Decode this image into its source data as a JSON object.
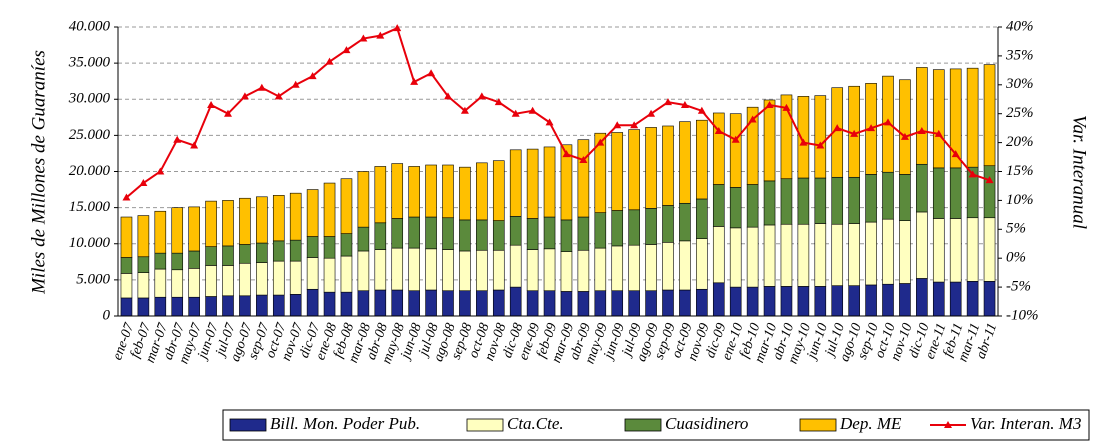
{
  "chart_data": {
    "type": "stacked_bar_line",
    "y_label": "Miles de Millones de Guaraníes",
    "y2_label": "Var. Interanual",
    "categories": [
      "ene-07",
      "feb-07",
      "mar-07",
      "abr-07",
      "may-07",
      "jun-07",
      "jul-07",
      "ago-07",
      "sep-07",
      "oct-07",
      "nov-07",
      "dic-07",
      "ene-08",
      "feb-08",
      "mar-08",
      "abr-08",
      "may-08",
      "jun-08",
      "jul-08",
      "ago-08",
      "sep-08",
      "oct-08",
      "nov-08",
      "dic-08",
      "ene-09",
      "feb-09",
      "mar-09",
      "abr-09",
      "may-09",
      "jun-09",
      "jul-09",
      "ago-09",
      "sep-09",
      "oct-09",
      "nov-09",
      "dic-09",
      "ene-10",
      "feb-10",
      "mar-10",
      "abr-10",
      "may-10",
      "jun-10",
      "jul-10",
      "ago-10",
      "sep-10",
      "oct-10",
      "nov-10",
      "dic-10",
      "ene-11",
      "feb-11",
      "mar-11",
      "abr-11"
    ],
    "series": [
      {
        "name": "Bill. Mon. Poder Pub.",
        "color": "#1f2a8c",
        "values": [
          2500,
          2500,
          2600,
          2600,
          2600,
          2700,
          2800,
          2800,
          2900,
          2900,
          3000,
          3700,
          3300,
          3300,
          3500,
          3600,
          3600,
          3500,
          3600,
          3500,
          3500,
          3500,
          3600,
          4000,
          3500,
          3500,
          3400,
          3400,
          3500,
          3500,
          3500,
          3500,
          3600,
          3600,
          3700,
          4600,
          4000,
          4000,
          4100,
          4100,
          4100,
          4100,
          4200,
          4200,
          4300,
          4400,
          4500,
          5200,
          4700,
          4700,
          4800,
          4800
        ]
      },
      {
        "name": "Cta.Cte.",
        "color": "#ffffc0",
        "values": [
          3400,
          3500,
          3900,
          3800,
          4000,
          4300,
          4200,
          4500,
          4500,
          4700,
          4600,
          4400,
          4700,
          5000,
          5500,
          5600,
          5800,
          5900,
          5700,
          5700,
          5500,
          5600,
          5500,
          5800,
          5700,
          5800,
          5500,
          5700,
          5900,
          6200,
          6300,
          6400,
          6600,
          6800,
          7000,
          7800,
          8200,
          8300,
          8500,
          8600,
          8600,
          8700,
          8500,
          8600,
          8700,
          9000,
          8700,
          9200,
          8800,
          8800,
          8800,
          8800
        ]
      },
      {
        "name": "Cuasidinero",
        "color": "#5b8a3c",
        "values": [
          2200,
          2200,
          2200,
          2300,
          2400,
          2600,
          2700,
          2600,
          2700,
          2800,
          2900,
          2900,
          3000,
          3100,
          3300,
          3700,
          4100,
          4300,
          4400,
          4400,
          4300,
          4200,
          4100,
          4000,
          4300,
          4400,
          4400,
          4600,
          4900,
          4900,
          4900,
          5000,
          5100,
          5200,
          5500,
          5800,
          5600,
          5900,
          6100,
          6300,
          6400,
          6300,
          6500,
          6400,
          6600,
          6500,
          6400,
          6600,
          7000,
          7000,
          7000,
          7200
        ]
      },
      {
        "name": "Dep. ME",
        "color": "#ffc000",
        "values": [
          5600,
          5700,
          5800,
          6300,
          6100,
          6300,
          6300,
          6400,
          6400,
          6300,
          6500,
          6500,
          7400,
          7600,
          7700,
          7800,
          7600,
          7000,
          7200,
          7300,
          7300,
          7900,
          8300,
          9200,
          9600,
          9700,
          10400,
          10700,
          11000,
          10800,
          11100,
          11200,
          11000,
          11300,
          10900,
          9900,
          10200,
          10700,
          11200,
          11600,
          11300,
          11400,
          12400,
          12600,
          12600,
          13300,
          13100,
          13400,
          13600,
          13700,
          13700,
          14000
        ]
      },
      {
        "name": "Var. Interan. M3",
        "color": "#e8000b",
        "axis": "y2",
        "values": [
          10.5,
          13,
          15,
          20.5,
          19.5,
          26.5,
          25,
          28,
          29.5,
          28,
          30,
          31.5,
          34,
          36,
          38,
          38.5,
          39.8,
          30.5,
          32,
          28,
          25.5,
          28,
          27,
          25,
          25.5,
          23.5,
          18,
          17,
          20,
          23,
          23,
          25,
          27,
          26.5,
          25.5,
          22,
          20.5,
          24,
          26.5,
          26,
          20,
          19.5,
          22.5,
          21.5,
          22.5,
          23.5,
          21,
          22,
          21.5,
          18,
          14.5,
          13.5
        ]
      }
    ],
    "ylim": [
      0,
      40000
    ],
    "yticks": [
      0,
      {
        "value": 5000,
        "label": "5.000"
      },
      {
        "value": 10000,
        "label": "10.000"
      },
      {
        "value": 15000,
        "label": "15.000"
      },
      {
        "value": 20000,
        "label": "20.000"
      },
      {
        "value": 25000,
        "label": "25.000"
      },
      {
        "value": 30000,
        "label": "30.000"
      },
      {
        "value": 35000,
        "label": "35.000"
      },
      {
        "value": 40000,
        "label": "40.000"
      }
    ],
    "y2lim": [
      -10,
      40
    ],
    "y2ticks": [
      {
        "value": -10,
        "label": "-10%"
      },
      {
        "value": -5,
        "label": "-5%"
      },
      {
        "value": 0,
        "label": "0%"
      },
      {
        "value": 5,
        "label": "5%"
      },
      {
        "value": 10,
        "label": "10%"
      },
      {
        "value": 15,
        "label": "15%"
      },
      {
        "value": 20,
        "label": "20%"
      },
      {
        "value": 25,
        "label": "25%"
      },
      {
        "value": 30,
        "label": "30%"
      },
      {
        "value": 35,
        "label": "35%"
      },
      {
        "value": 40,
        "label": "40%"
      }
    ],
    "grid": true,
    "legend": "bottom"
  }
}
